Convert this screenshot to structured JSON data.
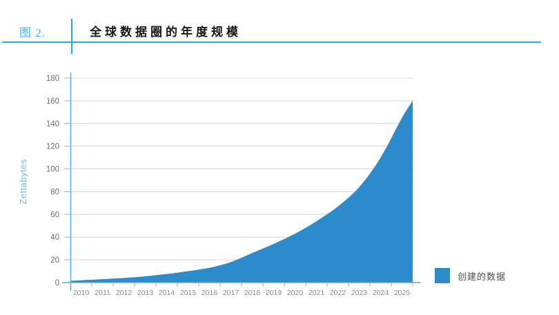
{
  "header": {
    "figure_label": "图 2.",
    "title": "全球数据圈的年度规模"
  },
  "colors": {
    "area": "#2c8bca",
    "accent": "#29abe2",
    "figure_label": "#45b7e8",
    "axis": "#58a8d8",
    "grid": "#d3d4d6",
    "tick": "#a8aaad",
    "ylabel": "#62c2ea",
    "y_tick_text": "#6d6e71",
    "x_tick_text": "#85878a",
    "legend_text": "#4a4b4d"
  },
  "chart_data": {
    "type": "area",
    "title": "全球数据圈的年度规模",
    "xlabel": "",
    "ylabel": "Zettabytes",
    "legend": [
      "创建的数据"
    ],
    "legend_position": "bottom-right",
    "grid": "horizontal",
    "categories": [
      "2010",
      "2011",
      "2012",
      "2013",
      "2014",
      "2015",
      "2016",
      "2017",
      "2018",
      "2019",
      "2020",
      "2021",
      "2022",
      "2023",
      "2024",
      "2025"
    ],
    "values": [
      2,
      3,
      4,
      5.5,
      7.5,
      10,
      13,
      18,
      26,
      34,
      43,
      54,
      67,
      84,
      110,
      145
    ],
    "start_value": 1.5,
    "end_value": 160,
    "ylim": [
      0,
      180
    ],
    "ytick_step": 20,
    "ytick_labels": [
      "0",
      "20",
      "40",
      "60",
      "80",
      "100",
      "120",
      "140",
      "160",
      "180"
    ]
  }
}
